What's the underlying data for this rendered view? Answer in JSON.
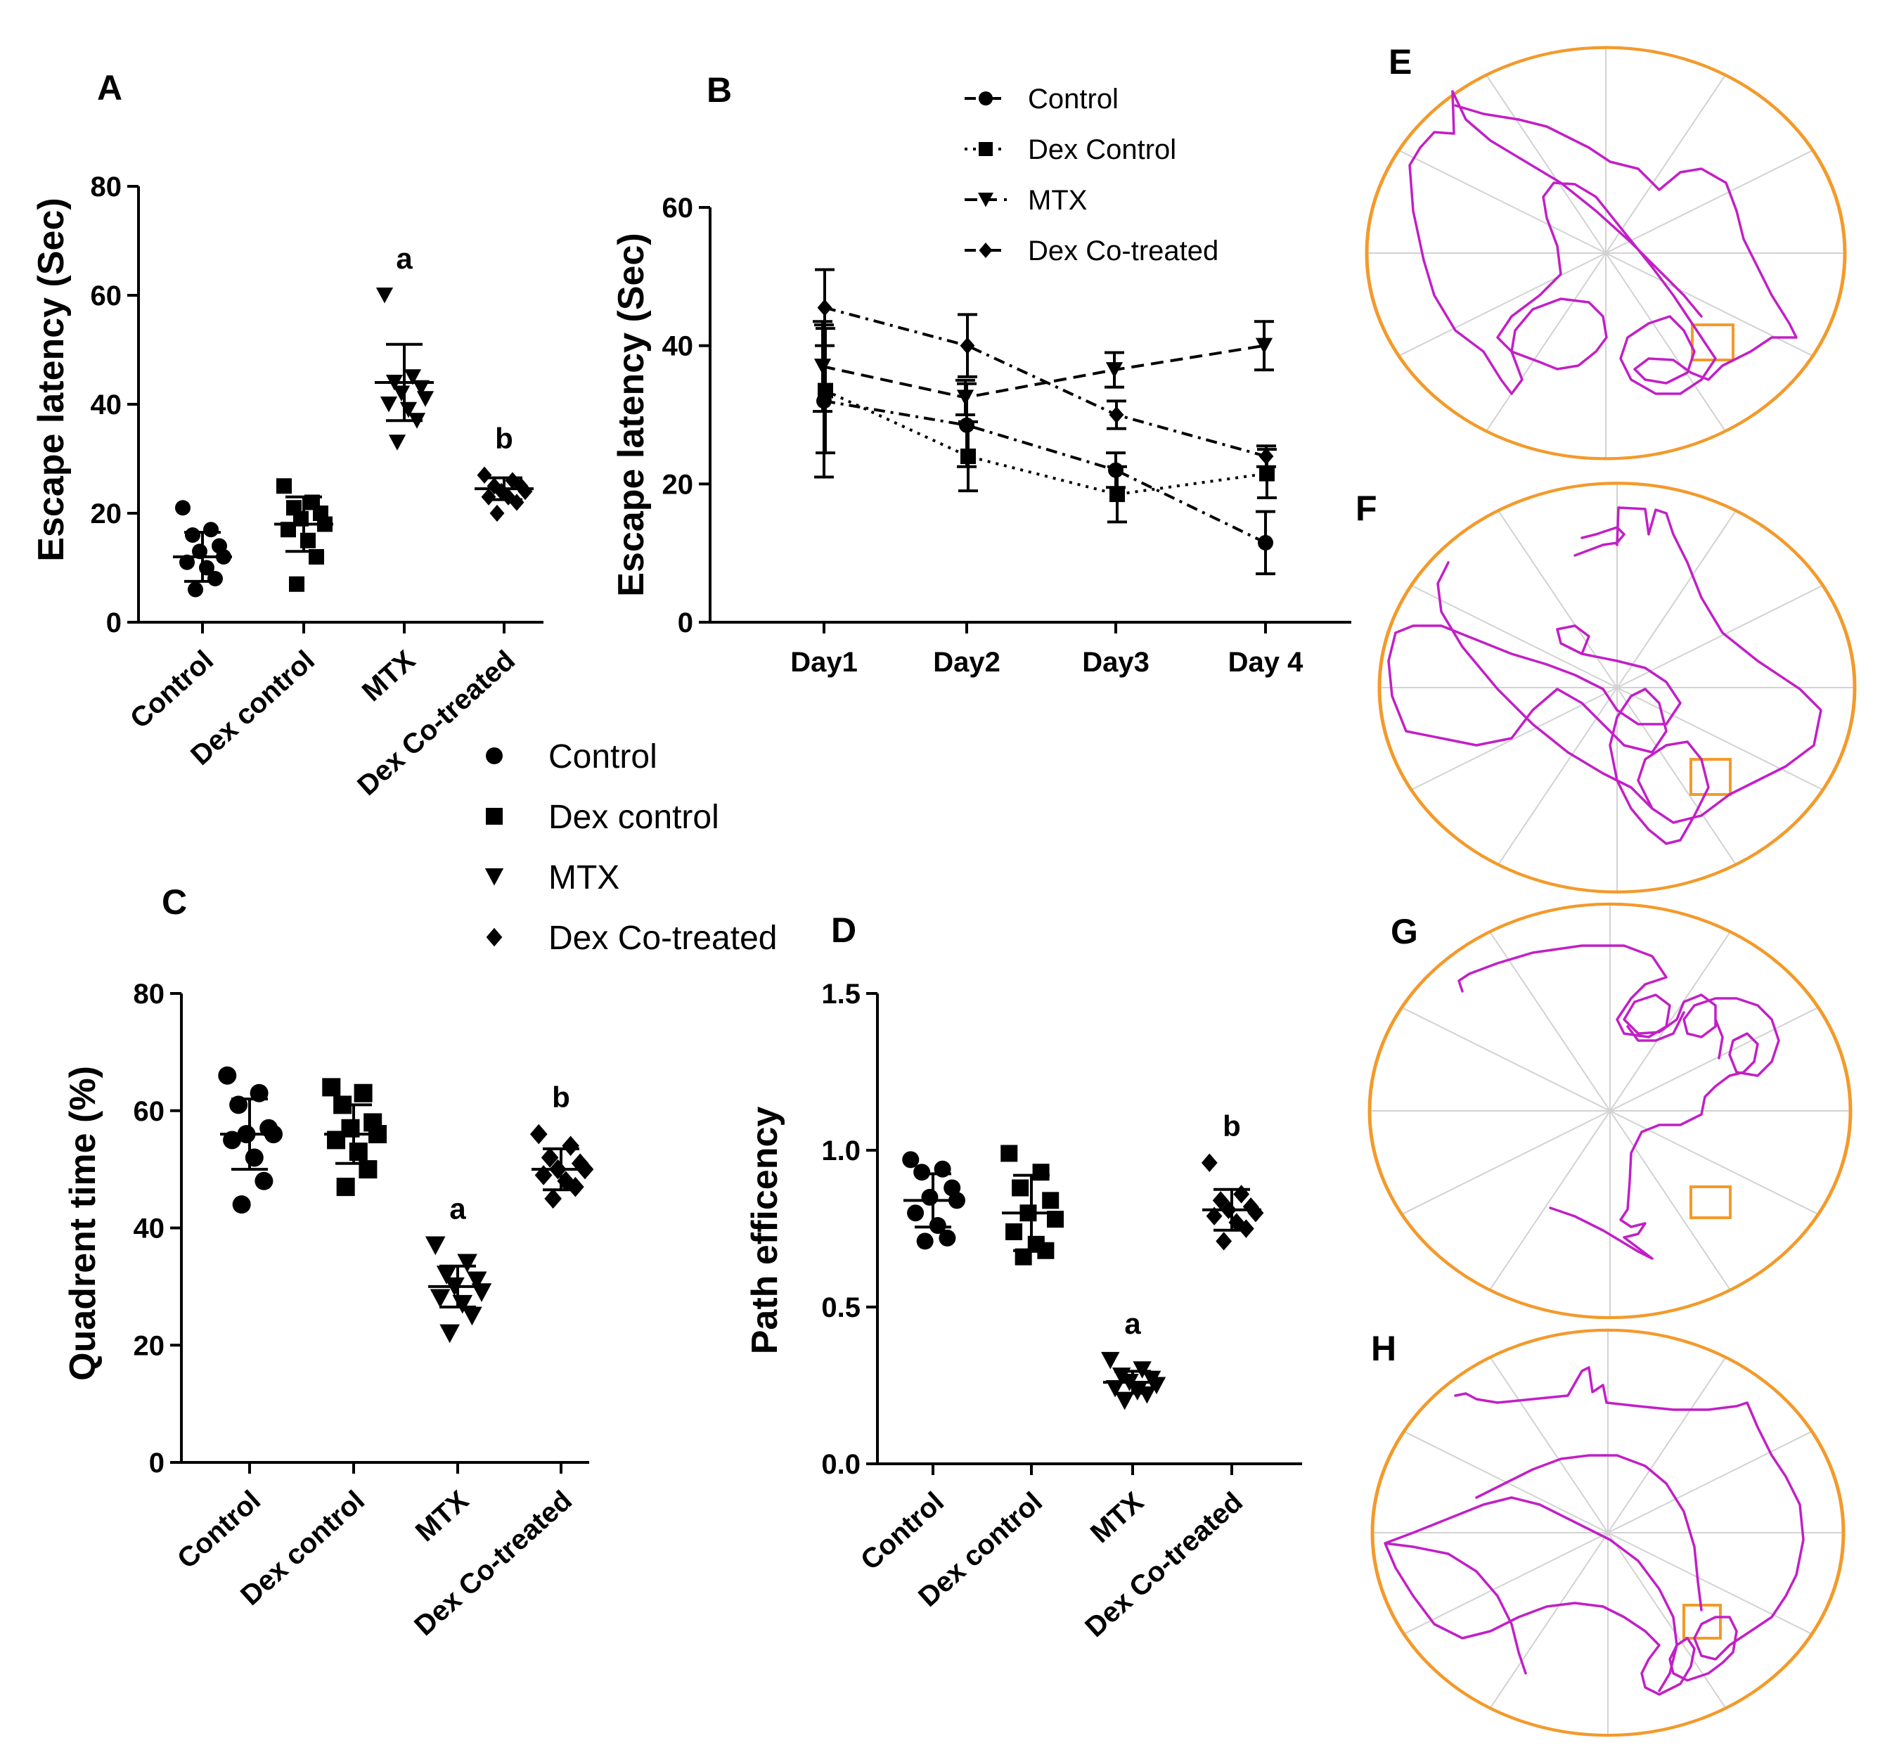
{
  "groups": [
    "Control",
    "Dex control",
    "MTX",
    "Dex Co-treated"
  ],
  "legend_cd": {
    "entries": [
      {
        "name": "Control",
        "marker": "circle"
      },
      {
        "name": "Dex control",
        "marker": "square"
      },
      {
        "name": "MTX",
        "marker": "triangle-down"
      },
      {
        "name": "Dex Co-treated",
        "marker": "diamond"
      }
    ]
  },
  "chart_data": [
    {
      "panel": "A",
      "type": "scatter",
      "ylabel": "Escape latency (Sec)",
      "ylim": [
        0,
        80
      ],
      "yticks": [
        0,
        20,
        40,
        60,
        80
      ],
      "categories": [
        "Control",
        "Dex control",
        "MTX",
        "Dex Co-treated"
      ],
      "markers": [
        "circle",
        "square",
        "triangle-down",
        "diamond"
      ],
      "points": [
        [
          21,
          17,
          16,
          14,
          13,
          12,
          11,
          10,
          8,
          6
        ],
        [
          25,
          22,
          21,
          20,
          19,
          18,
          17,
          15,
          12,
          7
        ],
        [
          60,
          45,
          44,
          43,
          42,
          41,
          40,
          39,
          37,
          33
        ],
        [
          27,
          26,
          25,
          25,
          24,
          24,
          23,
          23,
          22,
          20
        ]
      ],
      "mean": [
        12,
        18,
        44,
        24.5
      ],
      "sd": [
        4.5,
        5,
        7,
        2
      ],
      "annotations": [
        {
          "category": "MTX",
          "text": "a"
        },
        {
          "category": "Dex Co-treated",
          "text": "b"
        }
      ]
    },
    {
      "panel": "B",
      "type": "line",
      "ylabel": "Escape latency (Sec)",
      "ylim": [
        0,
        60
      ],
      "yticks": [
        0,
        20,
        40,
        60
      ],
      "categories": [
        "Day1",
        "Day2",
        "Day3",
        "Day 4"
      ],
      "series": [
        {
          "name": "Control",
          "marker": "circle",
          "dash": "dashdot",
          "values": [
            32,
            28.5,
            22,
            11.5
          ],
          "err": [
            11,
            6,
            2.5,
            4.5
          ]
        },
        {
          "name": "Dex Control",
          "marker": "square",
          "dash": "dotted",
          "values": [
            33.5,
            24,
            18.5,
            21.5
          ],
          "err": [
            9,
            5,
            4,
            3.5
          ]
        },
        {
          "name": "MTX",
          "marker": "triangle-down",
          "dash": "dashed",
          "values": [
            37,
            32.5,
            36.5,
            40
          ],
          "err": [
            6.5,
            2.5,
            2.5,
            3.5
          ]
        },
        {
          "name": "Dex Co-treated",
          "marker": "diamond",
          "dash": "dashdot",
          "values": [
            45.5,
            40,
            30,
            24
          ],
          "err": [
            5.5,
            4.5,
            2,
            1.5
          ]
        }
      ]
    },
    {
      "panel": "C",
      "type": "scatter",
      "ylabel": "Quadrent time (%)",
      "ylim": [
        0,
        80
      ],
      "yticks": [
        0,
        20,
        40,
        60,
        80
      ],
      "categories": [
        "Control",
        "Dex control",
        "MTX",
        "Dex Co-treated"
      ],
      "markers": [
        "circle",
        "square",
        "triangle-down",
        "diamond"
      ],
      "points": [
        [
          66,
          63,
          61,
          57,
          56,
          56,
          55,
          52,
          48,
          44
        ],
        [
          64,
          63,
          61,
          58,
          57,
          56,
          55,
          53,
          50,
          47
        ],
        [
          37,
          34,
          32,
          31,
          30,
          29,
          28,
          27,
          25,
          22
        ],
        [
          56,
          54,
          52,
          51,
          50,
          50,
          49,
          48,
          47,
          45
        ]
      ],
      "mean": [
        56,
        56,
        30,
        50
      ],
      "sd": [
        6,
        5,
        3.5,
        3.5
      ],
      "annotations": [
        {
          "category": "MTX",
          "text": "a"
        },
        {
          "category": "Dex Co-treated",
          "text": "b"
        }
      ]
    },
    {
      "panel": "D",
      "type": "scatter",
      "ylabel": "Path efficency",
      "ylim": [
        0,
        1.5
      ],
      "yticks": [
        "0.0",
        "0.5",
        "1.0",
        "1.5"
      ],
      "categories": [
        "Control",
        "Dex control",
        "MTX",
        "Dex Co-treated"
      ],
      "markers": [
        "circle",
        "square",
        "triangle-down",
        "diamond"
      ],
      "points": [
        [
          0.97,
          0.94,
          0.93,
          0.88,
          0.85,
          0.84,
          0.8,
          0.76,
          0.72,
          0.71
        ],
        [
          0.99,
          0.93,
          0.88,
          0.84,
          0.8,
          0.78,
          0.74,
          0.7,
          0.68,
          0.66
        ],
        [
          0.33,
          0.3,
          0.28,
          0.27,
          0.26,
          0.25,
          0.24,
          0.23,
          0.22,
          0.2
        ],
        [
          0.96,
          0.86,
          0.84,
          0.82,
          0.81,
          0.8,
          0.79,
          0.77,
          0.75,
          0.71
        ]
      ],
      "mean": [
        0.84,
        0.8,
        0.26,
        0.81
      ],
      "sd": [
        0.085,
        0.12,
        0.035,
        0.065
      ],
      "annotations": [
        {
          "category": "MTX",
          "text": "a"
        },
        {
          "category": "Dex Co-treated",
          "text": "b"
        }
      ]
    }
  ],
  "track_panels": [
    {
      "label": "E"
    },
    {
      "label": "F"
    },
    {
      "label": "G"
    },
    {
      "label": "H"
    }
  ],
  "colors": {
    "arena": "#f39a2b",
    "track": "#c21fc6",
    "grid": "#d2d2d2"
  }
}
